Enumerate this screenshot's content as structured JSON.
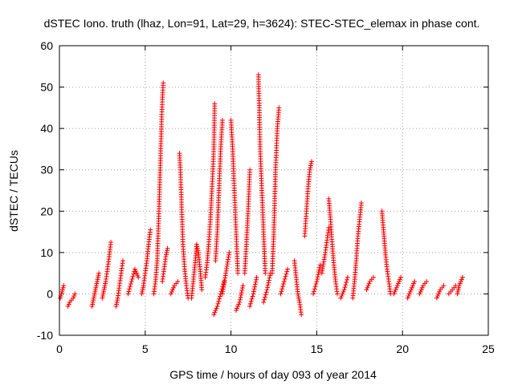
{
  "chart_data": {
    "type": "scatter",
    "title": "dSTEC Iono. truth (lhaz, Lon=91, Lat=29, h=3624): STEC-STEC_elemax in phase cont.",
    "xlabel": "GPS time / hours of day 093 of year 2014",
    "ylabel": "dSTEC  / TECUs",
    "xlim": [
      0,
      25
    ],
    "ylim": [
      -10,
      60
    ],
    "xticks": [
      0,
      5,
      10,
      15,
      20,
      25
    ],
    "yticks": [
      -10,
      0,
      10,
      20,
      30,
      40,
      50,
      60
    ],
    "grid": true,
    "marker": "plus",
    "series_color": "#ff0000",
    "arcs": [
      {
        "x": [
          0.05,
          0.12,
          0.18,
          0.25
        ],
        "y": [
          -1,
          0,
          1,
          2
        ]
      },
      {
        "x": [
          0.5,
          0.6,
          0.7,
          0.8,
          0.9
        ],
        "y": [
          -3,
          -2,
          -1.5,
          -1,
          0
        ]
      },
      {
        "x": [
          1.9,
          2.0,
          2.1,
          2.2,
          2.3
        ],
        "y": [
          -3,
          -1,
          1,
          3,
          5
        ]
      },
      {
        "x": [
          2.5,
          2.6,
          2.7,
          2.8,
          2.9,
          3.0
        ],
        "y": [
          -1,
          1,
          3,
          6,
          9,
          12.5
        ]
      },
      {
        "x": [
          3.3,
          3.4,
          3.5,
          3.6,
          3.7
        ],
        "y": [
          -3,
          -1,
          2,
          5,
          8
        ]
      },
      {
        "x": [
          4.0,
          4.2,
          4.4,
          4.6
        ],
        "y": [
          0,
          3,
          6,
          4
        ]
      },
      {
        "x": [
          4.8,
          4.9,
          5.0,
          5.1,
          5.2,
          5.3
        ],
        "y": [
          0,
          2,
          5,
          8,
          12,
          15.5
        ]
      },
      {
        "x": [
          5.5,
          5.6,
          5.7,
          5.75,
          5.8,
          5.85,
          5.9,
          5.95,
          6.0,
          6.05
        ],
        "y": [
          0,
          3,
          8,
          14,
          20,
          27,
          34,
          41,
          47,
          51
        ]
      },
      {
        "x": [
          6.0,
          6.1,
          6.2,
          6.3
        ],
        "y": [
          3,
          6,
          9,
          11
        ]
      },
      {
        "x": [
          6.5,
          6.7,
          6.9
        ],
        "y": [
          0,
          2,
          3
        ]
      },
      {
        "x": [
          7.0,
          7.05,
          7.1,
          7.15,
          7.2,
          7.3,
          7.4,
          7.5
        ],
        "y": [
          34,
          30,
          24,
          18,
          12,
          6,
          2,
          -1
        ]
      },
      {
        "x": [
          7.7,
          7.8,
          7.9,
          8.0,
          8.1,
          8.2,
          8.3
        ],
        "y": [
          -1,
          3,
          7,
          12,
          10,
          6,
          1
        ]
      },
      {
        "x": [
          8.5,
          8.6,
          8.7,
          8.8,
          8.9,
          9.0,
          9.05
        ],
        "y": [
          4,
          7,
          12,
          18,
          26,
          35,
          46
        ]
      },
      {
        "x": [
          9.0,
          9.2,
          9.4,
          9.6
        ],
        "y": [
          -5,
          -3,
          0,
          3
        ]
      },
      {
        "x": [
          9.1,
          9.2,
          9.3,
          9.4,
          9.5
        ],
        "y": [
          8,
          15,
          25,
          35,
          42
        ]
      },
      {
        "x": [
          9.5,
          9.7,
          9.9
        ],
        "y": [
          0,
          5,
          10
        ]
      },
      {
        "x": [
          10.0,
          10.1,
          10.2,
          10.3,
          10.4
        ],
        "y": [
          42,
          35,
          25,
          15,
          5
        ]
      },
      {
        "x": [
          10.3,
          10.5,
          10.7
        ],
        "y": [
          -4,
          -2,
          2
        ]
      },
      {
        "x": [
          10.8,
          10.9,
          11.0,
          11.1
        ],
        "y": [
          5,
          12,
          20,
          30
        ]
      },
      {
        "x": [
          11.1,
          11.3,
          11.5
        ],
        "y": [
          -3,
          0,
          4
        ]
      },
      {
        "x": [
          11.6,
          11.65,
          11.7,
          11.8,
          11.9,
          12.0
        ],
        "y": [
          53,
          45,
          35,
          25,
          15,
          5
        ]
      },
      {
        "x": [
          11.9,
          12.1,
          12.3
        ],
        "y": [
          -2,
          1,
          5
        ]
      },
      {
        "x": [
          12.4,
          12.5,
          12.6,
          12.7,
          12.8
        ],
        "y": [
          5,
          15,
          30,
          40,
          45
        ]
      },
      {
        "x": [
          12.9,
          13.1,
          13.3
        ],
        "y": [
          0,
          3,
          6
        ]
      },
      {
        "x": [
          13.7,
          13.8,
          13.9,
          14.0,
          14.1
        ],
        "y": [
          8,
          4,
          0,
          -2,
          -5
        ]
      },
      {
        "x": [
          14.3,
          14.4,
          14.5,
          14.6,
          14.7
        ],
        "y": [
          14,
          20,
          26,
          30,
          32
        ]
      },
      {
        "x": [
          14.8,
          15.0,
          15.2
        ],
        "y": [
          0,
          3,
          7
        ]
      },
      {
        "x": [
          15.3,
          15.5,
          15.7
        ],
        "y": [
          5,
          10,
          16
        ]
      },
      {
        "x": [
          15.7,
          15.8,
          15.9,
          16.0,
          16.1,
          16.2
        ],
        "y": [
          23,
          18,
          12,
          7,
          3,
          0
        ]
      },
      {
        "x": [
          16.4,
          16.6,
          16.8
        ],
        "y": [
          -1,
          1,
          4
        ]
      },
      {
        "x": [
          17.1,
          17.2,
          17.3,
          17.4,
          17.5,
          17.6
        ],
        "y": [
          -1,
          3,
          8,
          14,
          18,
          22
        ]
      },
      {
        "x": [
          17.9,
          18.1,
          18.3
        ],
        "y": [
          1,
          3,
          4
        ]
      },
      {
        "x": [
          18.8,
          18.9,
          19.0,
          19.1,
          19.2,
          19.3
        ],
        "y": [
          20,
          15,
          10,
          6,
          3,
          0
        ]
      },
      {
        "x": [
          19.5,
          19.7,
          19.9
        ],
        "y": [
          0,
          2,
          4
        ]
      },
      {
        "x": [
          20.3,
          20.5,
          20.7
        ],
        "y": [
          -1,
          1,
          3
        ]
      },
      {
        "x": [
          21.0,
          21.2,
          21.4
        ],
        "y": [
          0,
          2,
          3
        ]
      },
      {
        "x": [
          22.0,
          22.2,
          22.4
        ],
        "y": [
          -1,
          1,
          2
        ]
      },
      {
        "x": [
          22.7,
          22.9,
          23.1
        ],
        "y": [
          0,
          1,
          2
        ]
      },
      {
        "x": [
          23.2,
          23.3,
          23.4,
          23.5
        ],
        "y": [
          0,
          2,
          3,
          4
        ]
      }
    ]
  }
}
